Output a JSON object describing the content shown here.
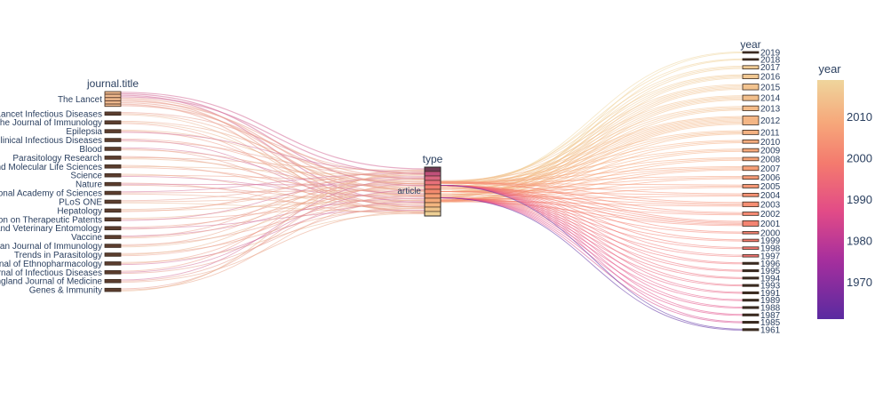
{
  "chart_data": {
    "type": "parcats",
    "dimensions": [
      {
        "label": "journal.title",
        "categories": [
          "The Lancet",
          "The Lancet Infectious Diseases",
          "The Journal of Immunology",
          "Epilepsia",
          "Clinical Infectious Diseases",
          "Blood",
          "Parasitology Research",
          "Cellular and Molecular Life Sciences",
          "Science",
          "Nature",
          "Proceedings of the National Academy of Sciences",
          "PLoS ONE",
          "Hepatology",
          "Expert Opinion on Therapeutic Patents",
          "Medical and Veterinary Entomology",
          "Vaccine",
          "European Journal of Immunology",
          "Trends in Parasitology",
          "Journal of Ethnopharmacology",
          "Journal of Infectious Diseases",
          "New England Journal of Medicine",
          "Genes & Immunity"
        ],
        "weights": [
          4.5,
          1,
          1,
          1,
          1,
          1,
          1,
          1,
          1,
          1,
          1,
          1,
          1,
          1,
          1,
          1,
          1,
          1,
          1,
          1,
          1,
          1
        ]
      },
      {
        "label": "type",
        "categories": [
          "article"
        ],
        "weights": [
          1
        ]
      },
      {
        "label": "year",
        "categories": [
          "2019",
          "2018",
          "2017",
          "2016",
          "2015",
          "2014",
          "2013",
          "2012",
          "2011",
          "2010",
          "2009",
          "2008",
          "2007",
          "2006",
          "2005",
          "2004",
          "2003",
          "2002",
          "2001",
          "2000",
          "1999",
          "1998",
          "1997",
          "1996",
          "1995",
          "1994",
          "1993",
          "1991",
          "1989",
          "1988",
          "1987",
          "1985",
          "1961"
        ],
        "weights": [
          0.5,
          0.5,
          1,
          1.3,
          1.7,
          1.6,
          1.4,
          2.6,
          1.3,
          1,
          1,
          1,
          1.3,
          1,
          1,
          1,
          1.4,
          1,
          1.6,
          0.7,
          0.7,
          0.7,
          0.7,
          0.6,
          0.6,
          0.6,
          0.6,
          0.6,
          0.6,
          0.6,
          0.6,
          0.6,
          0.6
        ]
      }
    ],
    "colorbar": {
      "title": "year",
      "tickvals": [
        1970,
        1980,
        1990,
        2000,
        2010
      ],
      "range": [
        1961,
        2019
      ]
    },
    "colorscale": [
      "#0d0887",
      "#7201a8",
      "#bd3786",
      "#ed7953",
      "#fbb61a",
      "#eed298"
    ]
  }
}
